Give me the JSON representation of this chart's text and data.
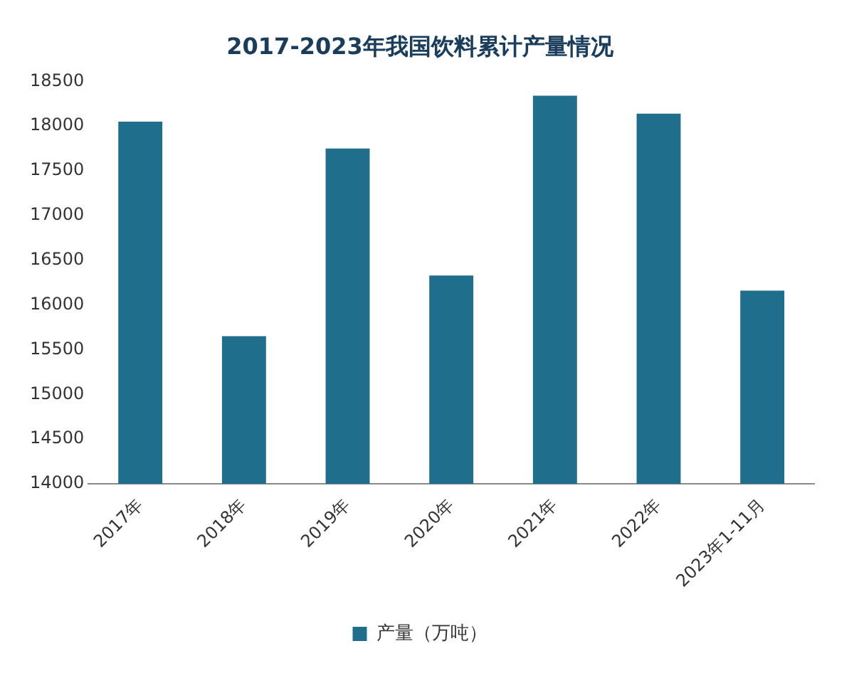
{
  "chart_data": {
    "type": "bar",
    "title": "2017-2023年我国饮料累计产量情况",
    "categories": [
      "2017年",
      "2018年",
      "2019年",
      "2020年",
      "2021年",
      "2022年",
      "2023年1-11月"
    ],
    "series": [
      {
        "name": "产量（万吨）",
        "color": "#1f6e8c",
        "values": [
          18050,
          15650,
          17750,
          16330,
          18340,
          18140,
          16160
        ]
      }
    ],
    "ylim": [
      14000,
      18500
    ],
    "yticks": [
      14000,
      14500,
      15000,
      15500,
      16000,
      16500,
      17000,
      17500,
      18000,
      18500
    ],
    "grid": false,
    "legend": "bottom"
  }
}
